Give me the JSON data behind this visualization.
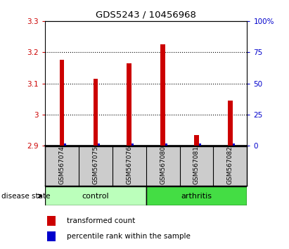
{
  "title": "GDS5243 / 10456968",
  "samples": [
    "GSM567074",
    "GSM567075",
    "GSM567076",
    "GSM567080",
    "GSM567081",
    "GSM567082"
  ],
  "groups": [
    "control",
    "control",
    "control",
    "arthritis",
    "arthritis",
    "arthritis"
  ],
  "transformed_counts": [
    3.175,
    3.115,
    3.165,
    3.225,
    2.935,
    3.045
  ],
  "percentile_ranks": [
    1.5,
    1.5,
    1.5,
    1.5,
    1.5,
    1.5
  ],
  "ylim_left": [
    2.9,
    3.3
  ],
  "ylim_right": [
    0,
    100
  ],
  "yticks_left": [
    2.9,
    3.0,
    3.1,
    3.2,
    3.3
  ],
  "yticks_right": [
    0,
    25,
    50,
    75,
    100
  ],
  "ytick_labels_left": [
    "2.9",
    "3",
    "3.1",
    "3.2",
    "3.3"
  ],
  "ytick_labels_right": [
    "0",
    "25",
    "50",
    "75",
    "100%"
  ],
  "bar_bottom": 2.9,
  "red_color": "#cc0000",
  "blue_color": "#0000cc",
  "control_bg": "#bbffbb",
  "arthritis_bg": "#44dd44",
  "label_bg": "#cccccc",
  "legend_red_label": "transformed count",
  "legend_blue_label": "percentile rank within the sample",
  "disease_state_label": "disease state"
}
